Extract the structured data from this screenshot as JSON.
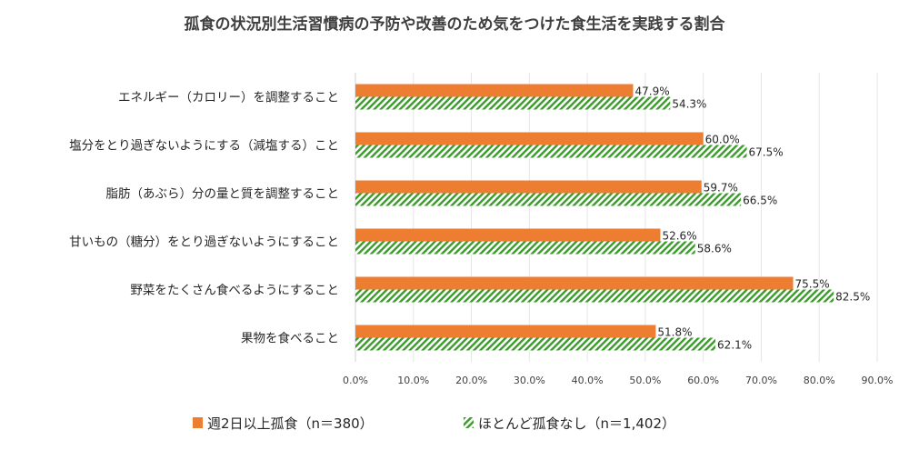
{
  "chart_data": {
    "type": "bar",
    "orientation": "horizontal",
    "title": "孤食の状況別生活習慣病の予防や改善のため気をつけた食生活を実践する割合",
    "categories": [
      "エネルギー（カロリー）を調整すること",
      "塩分をとり過ぎないようにする（減塩する）こと",
      "脂肪（あぶら）分の量と質を調整すること",
      "甘いもの（糖分）をとり過ぎないようにすること",
      "野菜をたくさん食べるようにすること",
      "果物を食べること"
    ],
    "series": [
      {
        "name": "週2日以上孤食（n＝380）",
        "values": [
          47.9,
          60.0,
          59.7,
          52.6,
          75.5,
          51.8
        ],
        "color": "#ED7D31",
        "pattern": "solid"
      },
      {
        "name": "ほとんど孤食なし（n＝1,402）",
        "values": [
          54.3,
          67.5,
          66.5,
          58.6,
          82.5,
          62.1
        ],
        "color": "#3A9A2A",
        "pattern": "diagonal-hatch"
      }
    ],
    "xlim": [
      0,
      90
    ],
    "xticks": [
      "0.0%",
      "10.0%",
      "20.0%",
      "30.0%",
      "40.0%",
      "50.0%",
      "60.0%",
      "70.0%",
      "80.0%",
      "90.0%"
    ],
    "data_labels": [
      [
        "47.9%",
        "60.0%",
        "59.7%",
        "52.6%",
        "75.5%",
        "51.8%"
      ],
      [
        "54.3%",
        "67.5%",
        "66.5%",
        "58.6%",
        "82.5%",
        "62.1%"
      ]
    ],
    "grid": true,
    "legend_position": "bottom"
  }
}
